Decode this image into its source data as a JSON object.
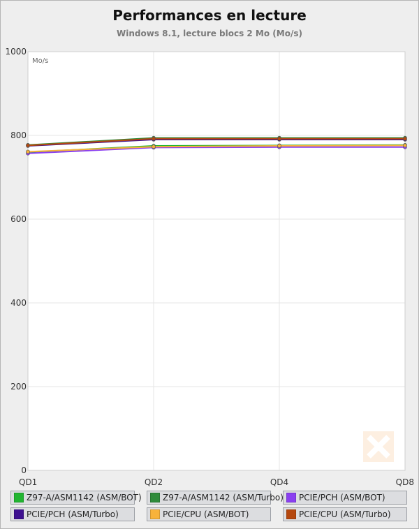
{
  "chart_data": {
    "type": "line",
    "title": "Performances en lecture",
    "subtitle": "Windows 8.1, lecture blocs 2 Mo (Mo/s)",
    "unit_label": "Mo/s",
    "categories": [
      "QD1",
      "QD2",
      "QD4",
      "QD8"
    ],
    "ylim": [
      0,
      1000
    ],
    "yticks": [
      0,
      200,
      400,
      600,
      800,
      1000
    ],
    "grid": true,
    "legend_position": "bottom",
    "series": [
      {
        "name": "Z97-A/ASM1142 (ASM/BOT)",
        "color": "#22b531",
        "values": [
          760,
          775,
          776,
          777
        ]
      },
      {
        "name": "Z97-A/ASM1142 (ASM/Turbo)",
        "color": "#2e8b3a",
        "values": [
          777,
          794,
          794,
          794
        ]
      },
      {
        "name": "PCIE/PCH (ASM/BOT)",
        "color": "#8a3ff0",
        "values": [
          757,
          771,
          772,
          772
        ]
      },
      {
        "name": "PCIE/PCH (ASM/Turbo)",
        "color": "#3d1090",
        "values": [
          775,
          790,
          790,
          790
        ]
      },
      {
        "name": "PCIE/CPU (ASM/BOT)",
        "color": "#f7b23b",
        "values": [
          761,
          773,
          775,
          776
        ]
      },
      {
        "name": "PCIE/CPU (ASM/Turbo)",
        "color": "#b5480f",
        "values": [
          776,
          792,
          792,
          792
        ]
      }
    ]
  }
}
